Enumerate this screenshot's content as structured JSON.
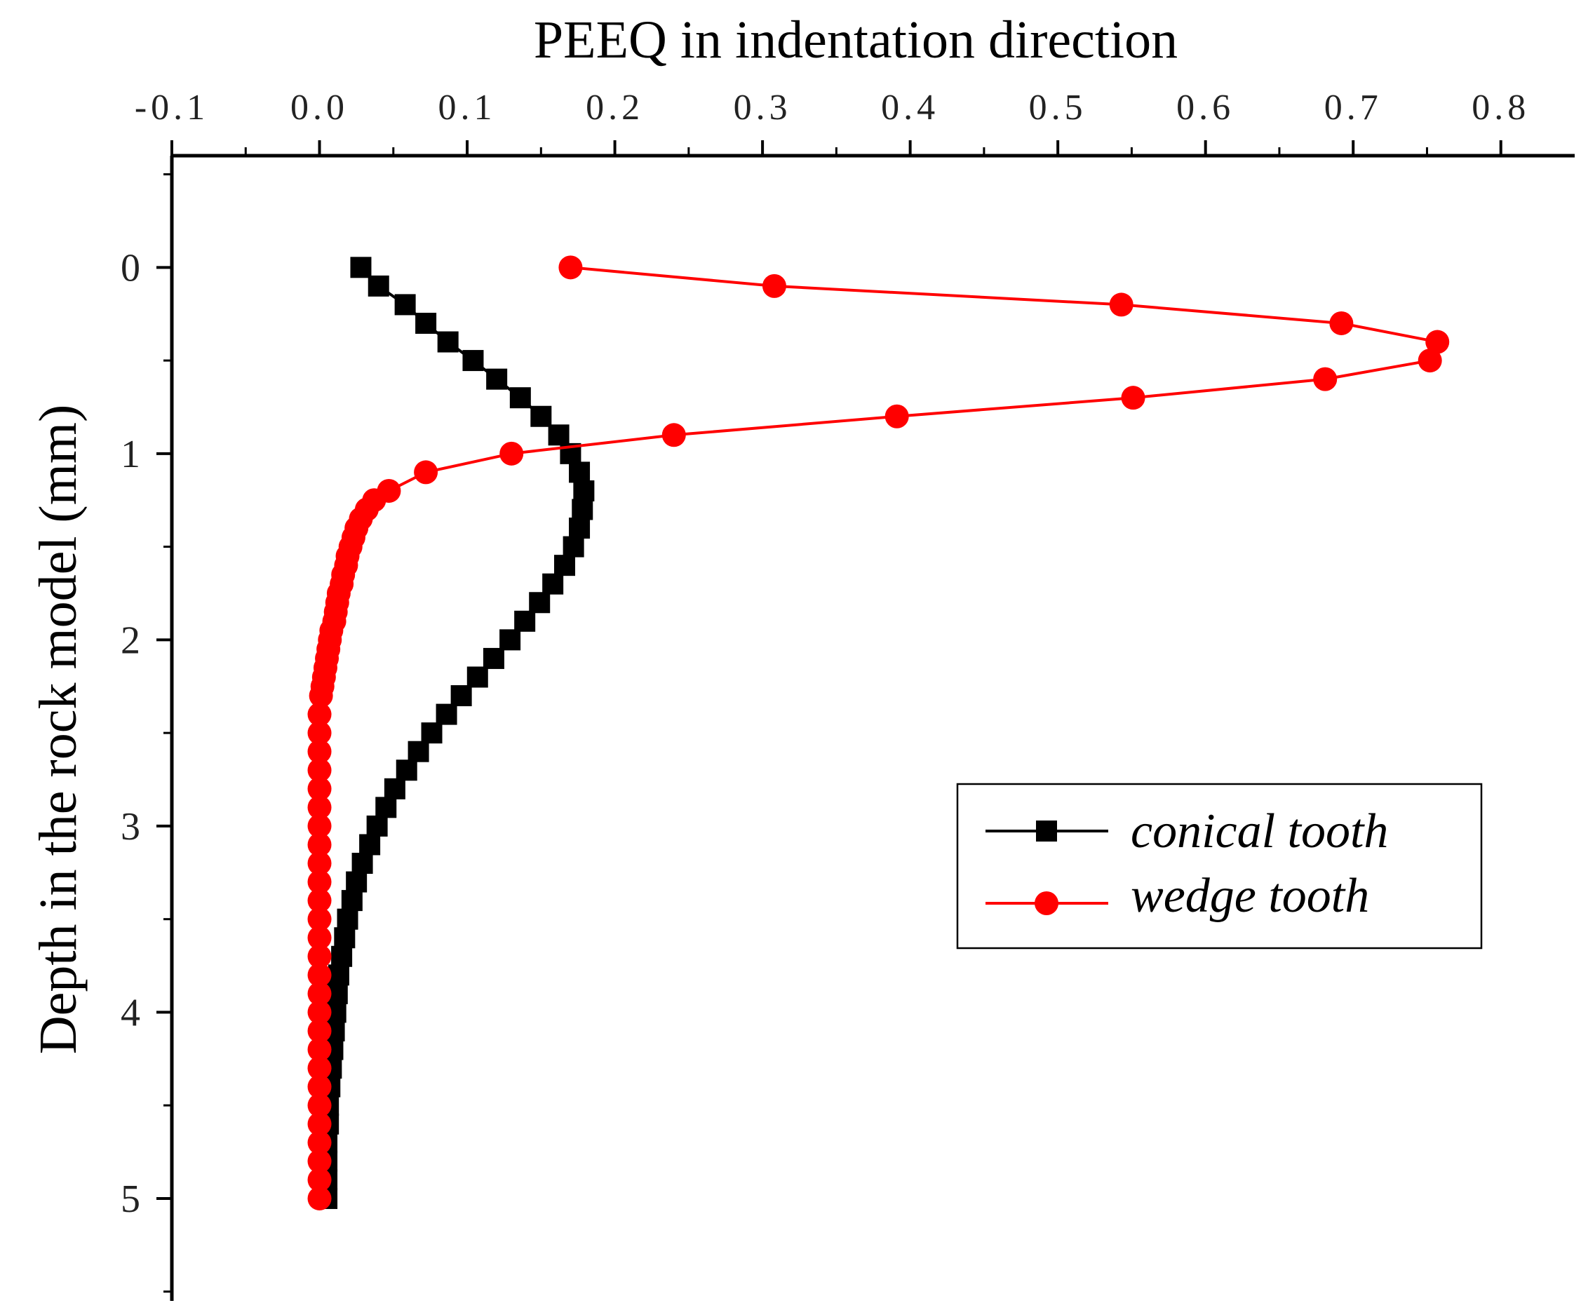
{
  "chart_data": {
    "type": "line",
    "title": "",
    "xlabel": "PEEQ in indentation direction",
    "ylabel": "Depth in the rock model (mm)",
    "xlim": [
      -0.1,
      0.85
    ],
    "ylim": [
      5.55,
      -0.6
    ],
    "x_axis_position": "top",
    "y_axis_inverted": true,
    "xticks": [
      -0.1,
      0.0,
      0.1,
      0.2,
      0.3,
      0.4,
      0.5,
      0.6,
      0.7,
      0.8
    ],
    "xtick_labels": [
      "-0.1",
      "0.0",
      "0.1",
      "0.2",
      "0.3",
      "0.4",
      "0.5",
      "0.6",
      "0.7",
      "0.8"
    ],
    "yticks": [
      0,
      1,
      2,
      3,
      4,
      5
    ],
    "ytick_labels": [
      "0",
      "1",
      "2",
      "3",
      "4",
      "5"
    ],
    "grid": false,
    "legend_position": "center-right",
    "series": [
      {
        "name": "conical tooth",
        "color": "#000000",
        "marker": "square",
        "points": [
          [
            0.028,
            0.0
          ],
          [
            0.04,
            0.1
          ],
          [
            0.058,
            0.2
          ],
          [
            0.072,
            0.3
          ],
          [
            0.087,
            0.4
          ],
          [
            0.104,
            0.5
          ],
          [
            0.12,
            0.6
          ],
          [
            0.136,
            0.7
          ],
          [
            0.15,
            0.8
          ],
          [
            0.162,
            0.9
          ],
          [
            0.17,
            1.0
          ],
          [
            0.176,
            1.1
          ],
          [
            0.179,
            1.2
          ],
          [
            0.178,
            1.3
          ],
          [
            0.176,
            1.4
          ],
          [
            0.172,
            1.5
          ],
          [
            0.166,
            1.6
          ],
          [
            0.158,
            1.7
          ],
          [
            0.149,
            1.8
          ],
          [
            0.139,
            1.9
          ],
          [
            0.129,
            2.0
          ],
          [
            0.118,
            2.1
          ],
          [
            0.107,
            2.2
          ],
          [
            0.096,
            2.3
          ],
          [
            0.086,
            2.4
          ],
          [
            0.076,
            2.5
          ],
          [
            0.067,
            2.6
          ],
          [
            0.059,
            2.7
          ],
          [
            0.051,
            2.8
          ],
          [
            0.045,
            2.9
          ],
          [
            0.039,
            3.0
          ],
          [
            0.034,
            3.1
          ],
          [
            0.029,
            3.2
          ],
          [
            0.025,
            3.3
          ],
          [
            0.022,
            3.4
          ],
          [
            0.019,
            3.5
          ],
          [
            0.017,
            3.6
          ],
          [
            0.015,
            3.7
          ],
          [
            0.013,
            3.8
          ],
          [
            0.012,
            3.9
          ],
          [
            0.011,
            4.0
          ],
          [
            0.01,
            4.1
          ],
          [
            0.009,
            4.2
          ],
          [
            0.008,
            4.3
          ],
          [
            0.007,
            4.4
          ],
          [
            0.006,
            4.5
          ],
          [
            0.006,
            4.6
          ],
          [
            0.005,
            4.7
          ],
          [
            0.005,
            4.8
          ],
          [
            0.005,
            4.9
          ],
          [
            0.005,
            5.0
          ]
        ]
      },
      {
        "name": "wedge tooth",
        "color": "#ff0000",
        "marker": "circle",
        "points": [
          [
            0.17,
            0.0
          ],
          [
            0.308,
            0.1
          ],
          [
            0.543,
            0.2
          ],
          [
            0.692,
            0.3
          ],
          [
            0.757,
            0.4
          ],
          [
            0.752,
            0.5
          ],
          [
            0.681,
            0.6
          ],
          [
            0.551,
            0.7
          ],
          [
            0.391,
            0.8
          ],
          [
            0.24,
            0.9
          ],
          [
            0.13,
            1.0
          ],
          [
            0.072,
            1.1
          ],
          [
            0.047,
            1.2
          ],
          [
            0.037,
            1.25
          ],
          [
            0.032,
            1.3
          ],
          [
            0.028,
            1.35
          ],
          [
            0.025,
            1.4
          ],
          [
            0.023,
            1.45
          ],
          [
            0.021,
            1.5
          ],
          [
            0.019,
            1.55
          ],
          [
            0.018,
            1.6
          ],
          [
            0.016,
            1.65
          ],
          [
            0.015,
            1.7
          ],
          [
            0.013,
            1.75
          ],
          [
            0.012,
            1.8
          ],
          [
            0.011,
            1.85
          ],
          [
            0.01,
            1.9
          ],
          [
            0.008,
            1.95
          ],
          [
            0.007,
            2.0
          ],
          [
            0.006,
            2.05
          ],
          [
            0.005,
            2.1
          ],
          [
            0.004,
            2.15
          ],
          [
            0.003,
            2.2
          ],
          [
            0.002,
            2.25
          ],
          [
            0.001,
            2.3
          ],
          [
            0.0,
            2.4
          ],
          [
            0.0,
            2.5
          ],
          [
            0.0,
            2.6
          ],
          [
            0.0,
            2.7
          ],
          [
            0.0,
            2.8
          ],
          [
            0.0,
            2.9
          ],
          [
            0.0,
            3.0
          ],
          [
            0.0,
            3.1
          ],
          [
            0.0,
            3.2
          ],
          [
            0.0,
            3.3
          ],
          [
            0.0,
            3.4
          ],
          [
            0.0,
            3.5
          ],
          [
            0.0,
            3.6
          ],
          [
            0.0,
            3.7
          ],
          [
            0.0,
            3.8
          ],
          [
            0.0,
            3.9
          ],
          [
            0.0,
            4.0
          ],
          [
            0.0,
            4.1
          ],
          [
            0.0,
            4.2
          ],
          [
            0.0,
            4.3
          ],
          [
            0.0,
            4.4
          ],
          [
            0.0,
            4.5
          ],
          [
            0.0,
            4.6
          ],
          [
            0.0,
            4.7
          ],
          [
            0.0,
            4.8
          ],
          [
            0.0,
            4.9
          ],
          [
            0.0,
            5.0
          ]
        ]
      }
    ]
  }
}
